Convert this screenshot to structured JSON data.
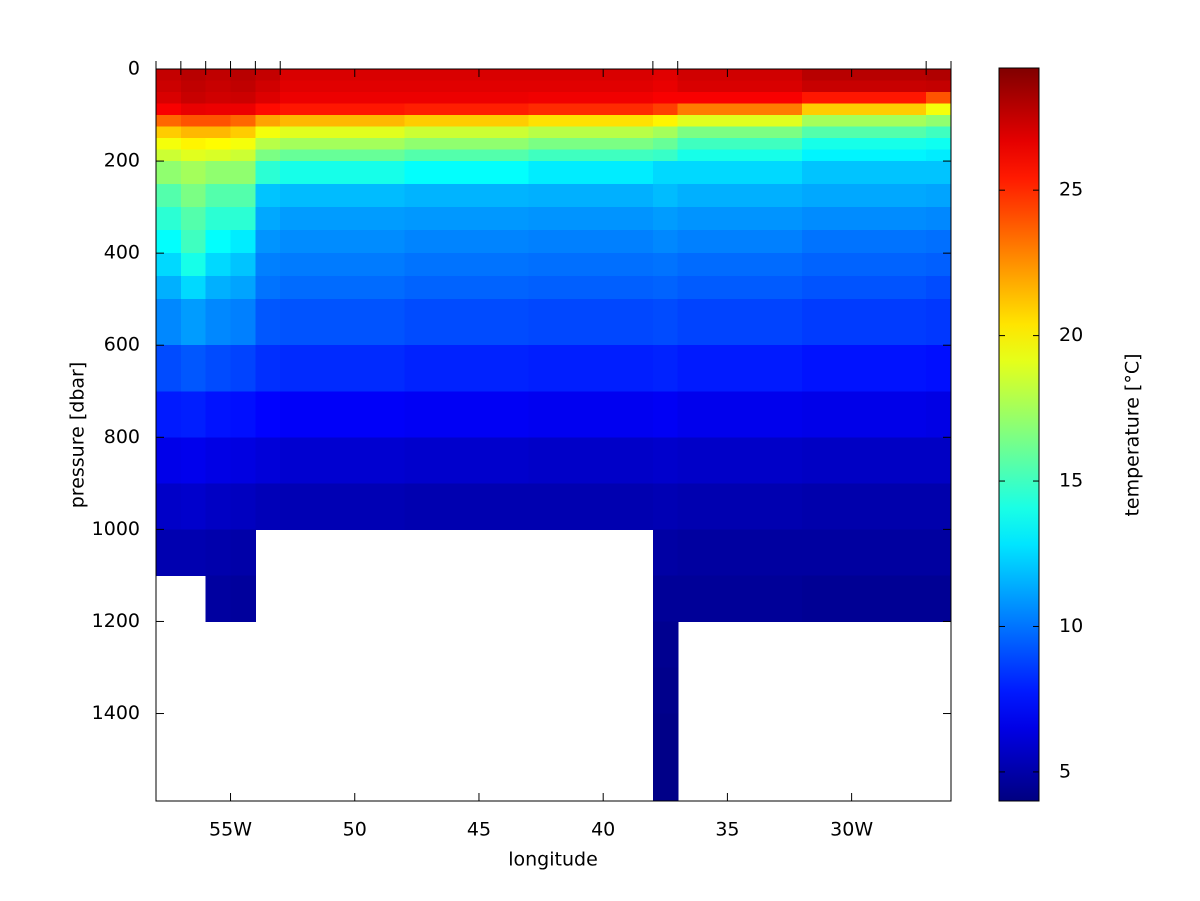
{
  "chart_data": {
    "type": "contour",
    "xlabel": "longitude",
    "ylabel": "pressure [dbar]",
    "colorbar_label": "temperature [°C]",
    "colormap": "jet",
    "y_reversed": true,
    "xlim": [
      -58,
      -26
    ],
    "ylim": [
      0,
      1590
    ],
    "clim": [
      4,
      29.2
    ],
    "xticks": [
      {
        "value": -55,
        "label": "55W"
      },
      {
        "value": -50,
        "label": "50"
      },
      {
        "value": -45,
        "label": "45"
      },
      {
        "value": -40,
        "label": "40"
      },
      {
        "value": -35,
        "label": "35"
      },
      {
        "value": -30,
        "label": "30W"
      }
    ],
    "yticks": [
      0,
      200,
      400,
      600,
      800,
      1000,
      1200,
      1400
    ],
    "cticks": [
      5,
      10,
      15,
      20,
      25
    ],
    "stations": [
      -58,
      -57,
      -56,
      -55,
      -54,
      -53,
      -38,
      -37,
      -27,
      -26
    ],
    "x_edges": [
      -58,
      -57,
      -56,
      -55,
      -54,
      -53,
      -48,
      -43,
      -38,
      -37,
      -32,
      -27,
      -26
    ],
    "y_edges": [
      0,
      25,
      50,
      75,
      100,
      125,
      150,
      175,
      200,
      250,
      300,
      350,
      400,
      450,
      500,
      600,
      700,
      800,
      900,
      1000,
      1100,
      1200,
      1300,
      1400,
      1590
    ],
    "z": [
      [
        27.5,
        27.8,
        27.6,
        27.8,
        27.5,
        27.0,
        27.0,
        27.0,
        26.8,
        27.2,
        27.8,
        28.0
      ],
      [
        27.3,
        27.6,
        27.4,
        27.6,
        27.2,
        26.8,
        26.8,
        26.8,
        26.6,
        27.0,
        27.4,
        27.5
      ],
      [
        27.0,
        27.4,
        27.2,
        27.3,
        26.9,
        26.5,
        26.5,
        26.4,
        26.2,
        26.2,
        25.5,
        24.0
      ],
      [
        26.2,
        26.6,
        26.5,
        26.5,
        25.8,
        25.5,
        25.3,
        25.0,
        24.5,
        23.0,
        21.0,
        19.5
      ],
      [
        23.5,
        24.0,
        24.0,
        23.5,
        22.0,
        21.5,
        21.0,
        20.5,
        20.0,
        19.0,
        17.5,
        17.0
      ],
      [
        21.0,
        21.5,
        21.5,
        21.0,
        19.5,
        19.0,
        18.5,
        18.0,
        17.5,
        16.5,
        15.5,
        15.0
      ],
      [
        19.5,
        20.0,
        19.8,
        19.5,
        18.0,
        17.5,
        17.0,
        16.5,
        16.0,
        15.0,
        14.0,
        13.8
      ],
      [
        18.5,
        19.0,
        18.8,
        18.5,
        16.5,
        16.0,
        15.5,
        15.0,
        14.8,
        14.0,
        13.2,
        13.0
      ],
      [
        17.0,
        17.5,
        17.0,
        17.0,
        14.5,
        14.0,
        13.5,
        13.0,
        12.5,
        12.5,
        12.0,
        12.0
      ],
      [
        15.5,
        16.5,
        15.5,
        15.5,
        12.0,
        11.8,
        11.6,
        11.5,
        11.8,
        11.5,
        11.3,
        11.2
      ],
      [
        14.5,
        15.5,
        14.5,
        14.5,
        11.3,
        11.0,
        10.9,
        10.8,
        11.0,
        10.8,
        10.6,
        10.5
      ],
      [
        13.5,
        15.0,
        13.5,
        13.0,
        10.8,
        10.6,
        10.4,
        10.3,
        10.5,
        10.3,
        10.0,
        9.9
      ],
      [
        12.5,
        14.0,
        12.5,
        12.0,
        10.3,
        10.2,
        10.0,
        9.9,
        10.0,
        9.8,
        9.6,
        9.5
      ],
      [
        11.5,
        12.5,
        11.5,
        11.2,
        10.0,
        9.8,
        9.6,
        9.5,
        9.6,
        9.4,
        9.2,
        9.0
      ],
      [
        10.5,
        11.0,
        10.5,
        10.3,
        9.3,
        9.2,
        9.0,
        8.9,
        9.0,
        8.8,
        8.6,
        8.5
      ],
      [
        9.0,
        9.3,
        9.0,
        8.8,
        8.3,
        8.2,
        8.0,
        7.9,
        8.0,
        7.8,
        7.6,
        7.5
      ],
      [
        7.8,
        7.9,
        7.6,
        7.5,
        7.2,
        7.0,
        6.9,
        6.8,
        6.9,
        6.7,
        6.6,
        6.5
      ],
      [
        6.6,
        6.7,
        6.5,
        6.4,
        6.2,
        6.0,
        5.9,
        5.8,
        5.9,
        5.8,
        5.7,
        5.7
      ],
      [
        5.8,
        5.9,
        5.7,
        5.6,
        5.4,
        5.3,
        5.2,
        5.2,
        5.3,
        5.2,
        5.1,
        5.1
      ],
      [
        5.2,
        5.2,
        5.1,
        5.0,
        null,
        null,
        null,
        null,
        4.9,
        4.8,
        4.8,
        4.8
      ],
      [
        null,
        null,
        4.8,
        4.7,
        null,
        null,
        null,
        null,
        4.6,
        4.6,
        4.5,
        4.5
      ],
      [
        null,
        null,
        null,
        null,
        null,
        null,
        null,
        null,
        4.4,
        null,
        null,
        null
      ],
      [
        null,
        null,
        null,
        null,
        null,
        null,
        null,
        null,
        4.3,
        null,
        null,
        null
      ],
      [
        null,
        null,
        null,
        null,
        null,
        null,
        null,
        null,
        4.2,
        null,
        null,
        null
      ]
    ]
  }
}
